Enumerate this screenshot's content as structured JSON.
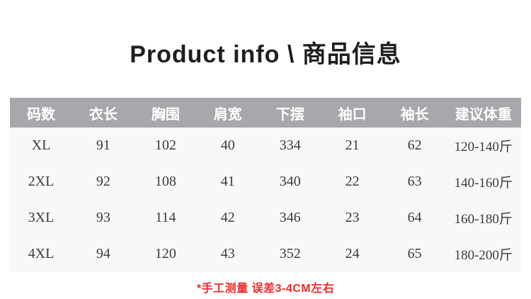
{
  "title": "Product info \\ 商品信息",
  "table": {
    "columns": [
      "码数",
      "衣长",
      "胸围",
      "肩宽",
      "下摆",
      "袖口",
      "袖长",
      "建议体重"
    ],
    "rows": [
      {
        "cells": [
          "XL",
          "91",
          "102",
          "40",
          "334",
          "21",
          "62",
          "120-140斤"
        ]
      },
      {
        "cells": [
          "2XL",
          "92",
          "108",
          "41",
          "340",
          "22",
          "63",
          "140-160斤"
        ]
      },
      {
        "cells": [
          "3XL",
          "93",
          "114",
          "42",
          "346",
          "23",
          "64",
          "160-180斤"
        ]
      },
      {
        "cells": [
          "4XL",
          "94",
          "120",
          "43",
          "352",
          "24",
          "65",
          "180-200斤"
        ]
      }
    ]
  },
  "footnote": "*手工测量 误差3-4CM左右",
  "colors": {
    "header_bg": "#a8a8ac",
    "header_text": "#ffffff",
    "body_bg": "#f8f8f8",
    "cell_text": "#3b3b3b",
    "title_text": "#1f1f1f",
    "note_red": "#ee2c2c"
  }
}
